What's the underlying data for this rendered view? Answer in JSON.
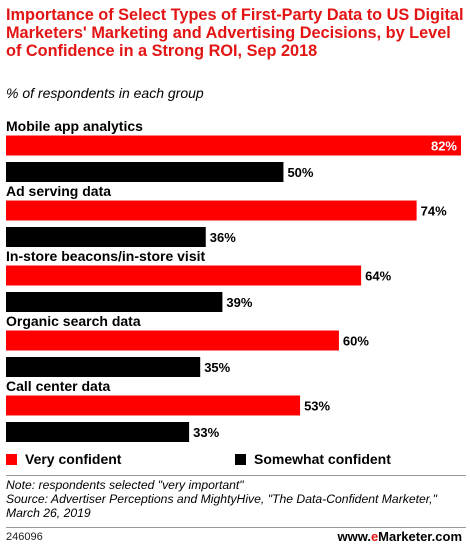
{
  "header": {
    "title": "Importance of Select Types of First-Party Data to US Digital Marketers' Marketing and Advertising Decisions, by Level of Confidence in a Strong ROI, Sep 2018",
    "subtitle": "% of respondents in each group"
  },
  "chart_data": {
    "type": "bar",
    "orientation": "horizontal",
    "categories": [
      "Mobile app analytics",
      "Ad serving data",
      "In-store beacons/in-store visit",
      "Organic search data",
      "Call center data"
    ],
    "series": [
      {
        "name": "Very confident",
        "values": [
          82,
          74,
          64,
          60,
          53
        ],
        "color": "#ff0000"
      },
      {
        "name": "Somewhat confident",
        "values": [
          50,
          36,
          39,
          35,
          33
        ],
        "color": "#000000"
      }
    ],
    "value_suffix": "%",
    "xlim": [
      0,
      82
    ],
    "grid": false,
    "legend_position": "bottom-left"
  },
  "legend": {
    "very_label": "Very confident",
    "somewhat_label": "Somewhat confident"
  },
  "footer": {
    "note": "Note: respondents selected \"very important\"",
    "source": "Source: Advertiser Perceptions and MightyHive, \"The Data-Confident Marketer,\" March 26, 2019",
    "chart_id": "246096",
    "brand_e": "e",
    "brand_rest": "Marketer",
    "brand_domain": ".com",
    "brand_prefix": "www."
  },
  "colors": {
    "accent": "#e31414",
    "very": "#ff0000",
    "somewhat": "#000000"
  }
}
